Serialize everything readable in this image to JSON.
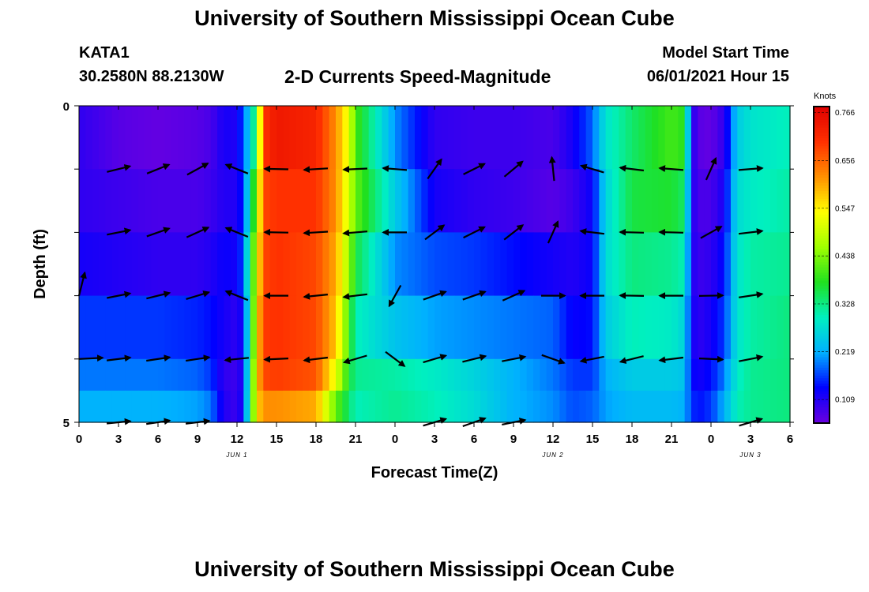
{
  "header": {
    "title": "University of Southern Mississippi Ocean Cube",
    "station": "KATA1",
    "coords": "30.2580N  88.2130W",
    "subtitle": "2-D Currents Speed-Magnitude",
    "model_start_label": "Model Start Time",
    "model_start_value": "06/01/2021 Hour 15"
  },
  "footer": {
    "title": "University of Southern Mississippi Ocean Cube"
  },
  "chart_data": {
    "type": "heatmap",
    "xlabel": "Forecast Time(Z)",
    "ylabel": "Depth (ft)",
    "x_ticks": [
      "0",
      "3",
      "6",
      "9",
      "12",
      "15",
      "18",
      "21",
      "0",
      "3",
      "6",
      "9",
      "12",
      "15",
      "18",
      "21",
      "0",
      "3",
      "6"
    ],
    "y_ticks": [
      "0",
      "5"
    ],
    "ylim": [
      0,
      5
    ],
    "day_labels": [
      {
        "text": "JUN 1",
        "hour": 12
      },
      {
        "text": "JUN 2",
        "hour": 36
      },
      {
        "text": "JUN 3",
        "hour": 51
      }
    ],
    "hours_span": 54,
    "colorbar": {
      "unit": "Knots",
      "ticks": [
        "0.109",
        "0.219",
        "0.328",
        "0.438",
        "0.547",
        "0.656",
        "0.766"
      ],
      "tick_values": [
        0.109,
        0.219,
        0.328,
        0.438,
        0.547,
        0.656,
        0.766
      ],
      "range": [
        0.055,
        0.78
      ],
      "colors": [
        "#6a00e0",
        "#0000ff",
        "#00b0ff",
        "#00f0c0",
        "#20e020",
        "#a0ff00",
        "#ffff00",
        "#ff9000",
        "#ff3000",
        "#e00000"
      ]
    },
    "speed_hours": [
      0,
      3,
      6,
      9,
      10,
      11,
      12,
      12.5,
      13,
      13.5,
      14,
      15,
      18,
      19.5,
      20.5,
      21,
      24,
      27,
      30,
      33,
      36,
      37.5,
      39,
      40,
      42,
      45,
      46,
      46.5,
      47,
      48,
      49,
      50,
      51,
      54
    ],
    "speed_depths": [
      0.25,
      1,
      2,
      3,
      4,
      5
    ],
    "speed_values": [
      [
        0.1,
        0.07,
        0.06,
        0.07,
        0.08,
        0.12,
        0.11,
        0.18,
        0.25,
        0.38,
        0.7,
        0.74,
        0.72,
        0.62,
        0.52,
        0.4,
        0.2,
        0.1,
        0.09,
        0.09,
        0.08,
        0.12,
        0.18,
        0.28,
        0.34,
        0.4,
        0.38,
        0.12,
        0.07,
        0.06,
        0.1,
        0.25,
        0.28,
        0.3
      ],
      [
        0.1,
        0.09,
        0.08,
        0.08,
        0.09,
        0.11,
        0.11,
        0.16,
        0.3,
        0.45,
        0.68,
        0.7,
        0.7,
        0.62,
        0.5,
        0.42,
        0.25,
        0.12,
        0.1,
        0.09,
        0.07,
        0.09,
        0.13,
        0.26,
        0.36,
        0.37,
        0.34,
        0.12,
        0.08,
        0.08,
        0.12,
        0.27,
        0.29,
        0.31
      ],
      [
        0.12,
        0.11,
        0.1,
        0.1,
        0.11,
        0.13,
        0.12,
        0.18,
        0.34,
        0.5,
        0.68,
        0.7,
        0.68,
        0.6,
        0.46,
        0.36,
        0.2,
        0.17,
        0.16,
        0.14,
        0.12,
        0.11,
        0.13,
        0.27,
        0.33,
        0.32,
        0.3,
        0.12,
        0.09,
        0.1,
        0.14,
        0.28,
        0.31,
        0.32
      ],
      [
        0.16,
        0.16,
        0.16,
        0.15,
        0.14,
        0.12,
        0.1,
        0.14,
        0.32,
        0.54,
        0.69,
        0.7,
        0.68,
        0.58,
        0.4,
        0.3,
        0.24,
        0.21,
        0.2,
        0.19,
        0.18,
        0.13,
        0.14,
        0.25,
        0.3,
        0.29,
        0.26,
        0.13,
        0.1,
        0.12,
        0.16,
        0.28,
        0.31,
        0.33
      ],
      [
        0.19,
        0.19,
        0.19,
        0.18,
        0.16,
        0.1,
        0.09,
        0.13,
        0.34,
        0.56,
        0.68,
        0.69,
        0.67,
        0.52,
        0.37,
        0.32,
        0.31,
        0.29,
        0.26,
        0.22,
        0.19,
        0.16,
        0.16,
        0.22,
        0.25,
        0.25,
        0.24,
        0.14,
        0.12,
        0.14,
        0.19,
        0.29,
        0.32,
        0.33
      ],
      [
        0.22,
        0.22,
        0.22,
        0.21,
        0.19,
        0.11,
        0.09,
        0.14,
        0.34,
        0.56,
        0.62,
        0.62,
        0.6,
        0.42,
        0.34,
        0.3,
        0.32,
        0.3,
        0.27,
        0.22,
        0.2,
        0.17,
        0.18,
        0.21,
        0.23,
        0.23,
        0.22,
        0.16,
        0.14,
        0.16,
        0.22,
        0.3,
        0.32,
        0.33
      ]
    ],
    "vectors": [
      {
        "hour": 3,
        "depth": 1,
        "dx": 1,
        "dy": 0.25
      },
      {
        "hour": 6,
        "depth": 1,
        "dx": 1,
        "dy": 0.4
      },
      {
        "hour": 9,
        "depth": 1,
        "dx": 1,
        "dy": 0.55
      },
      {
        "hour": 12,
        "depth": 1,
        "dx": -1,
        "dy": 0.4
      },
      {
        "hour": 15,
        "depth": 1,
        "dx": -1,
        "dy": 0.02
      },
      {
        "hour": 18,
        "depth": 1,
        "dx": -1,
        "dy": -0.06
      },
      {
        "hour": 21,
        "depth": 1,
        "dx": -1,
        "dy": -0.05
      },
      {
        "hour": 24,
        "depth": 1,
        "dx": -1,
        "dy": 0.08
      },
      {
        "hour": 27,
        "depth": 1,
        "dx": 0.6,
        "dy": 0.85
      },
      {
        "hour": 30,
        "depth": 1,
        "dx": 1,
        "dy": 0.5
      },
      {
        "hour": 33,
        "depth": 1,
        "dx": 0.9,
        "dy": 0.75
      },
      {
        "hour": 36,
        "depth": 1,
        "dx": -0.1,
        "dy": 1
      },
      {
        "hour": 39,
        "depth": 1,
        "dx": -1,
        "dy": 0.3
      },
      {
        "hour": 42,
        "depth": 1,
        "dx": -1,
        "dy": 0.12
      },
      {
        "hour": 45,
        "depth": 1,
        "dx": -1,
        "dy": 0.08
      },
      {
        "hour": 48,
        "depth": 1,
        "dx": 0.4,
        "dy": 0.9
      },
      {
        "hour": 51,
        "depth": 1,
        "dx": 1,
        "dy": 0.08
      },
      {
        "hour": 3,
        "depth": 2,
        "dx": 1,
        "dy": 0.2
      },
      {
        "hour": 6,
        "depth": 2,
        "dx": 1,
        "dy": 0.35
      },
      {
        "hour": 9,
        "depth": 2,
        "dx": 1,
        "dy": 0.45
      },
      {
        "hour": 12,
        "depth": 2,
        "dx": -1,
        "dy": 0.4
      },
      {
        "hour": 15,
        "depth": 2,
        "dx": -1,
        "dy": 0.02
      },
      {
        "hour": 18,
        "depth": 2,
        "dx": -1,
        "dy": -0.06
      },
      {
        "hour": 21,
        "depth": 2,
        "dx": -1,
        "dy": -0.08
      },
      {
        "hour": 24,
        "depth": 2,
        "dx": -1,
        "dy": 0
      },
      {
        "hour": 27,
        "depth": 2,
        "dx": 0.8,
        "dy": 0.6
      },
      {
        "hour": 30,
        "depth": 2,
        "dx": 1,
        "dy": 0.5
      },
      {
        "hour": 33,
        "depth": 2,
        "dx": 0.9,
        "dy": 0.7
      },
      {
        "hour": 36,
        "depth": 2,
        "dx": 0.4,
        "dy": 0.9
      },
      {
        "hour": 39,
        "depth": 2,
        "dx": -1,
        "dy": 0.12
      },
      {
        "hour": 42,
        "depth": 2,
        "dx": -1,
        "dy": 0.03
      },
      {
        "hour": 45,
        "depth": 2,
        "dx": -1,
        "dy": 0.03
      },
      {
        "hour": 48,
        "depth": 2,
        "dx": 0.9,
        "dy": 0.5
      },
      {
        "hour": 51,
        "depth": 2,
        "dx": 1,
        "dy": 0.12
      },
      {
        "hour": 0,
        "depth": 3,
        "dx": 0.25,
        "dy": 1
      },
      {
        "hour": 3,
        "depth": 3,
        "dx": 1,
        "dy": 0.2
      },
      {
        "hour": 6,
        "depth": 3,
        "dx": 1,
        "dy": 0.25
      },
      {
        "hour": 9,
        "depth": 3,
        "dx": 1,
        "dy": 0.3
      },
      {
        "hour": 12,
        "depth": 3,
        "dx": -1,
        "dy": 0.4
      },
      {
        "hour": 15,
        "depth": 3,
        "dx": -1,
        "dy": 0
      },
      {
        "hour": 18,
        "depth": 3,
        "dx": -1,
        "dy": -0.1
      },
      {
        "hour": 21,
        "depth": 3,
        "dx": -1,
        "dy": -0.12
      },
      {
        "hour": 24,
        "depth": 3,
        "dx": -0.5,
        "dy": -0.9
      },
      {
        "hour": 27,
        "depth": 3,
        "dx": 1,
        "dy": 0.35
      },
      {
        "hour": 30,
        "depth": 3,
        "dx": 1,
        "dy": 0.35
      },
      {
        "hour": 33,
        "depth": 3,
        "dx": 1,
        "dy": 0.45
      },
      {
        "hour": 36,
        "depth": 3,
        "dx": 1,
        "dy": 0
      },
      {
        "hour": 39,
        "depth": 3,
        "dx": -1,
        "dy": 0
      },
      {
        "hour": 42,
        "depth": 3,
        "dx": -1,
        "dy": 0.02
      },
      {
        "hour": 45,
        "depth": 3,
        "dx": -1,
        "dy": 0
      },
      {
        "hour": 48,
        "depth": 3,
        "dx": 1,
        "dy": 0.02
      },
      {
        "hour": 51,
        "depth": 3,
        "dx": 1,
        "dy": 0.15
      },
      {
        "hour": 0,
        "depth": 4,
        "dx": 1,
        "dy": 0.05
      },
      {
        "hour": 3,
        "depth": 4,
        "dx": 1,
        "dy": 0.12
      },
      {
        "hour": 6,
        "depth": 4,
        "dx": 1,
        "dy": 0.15
      },
      {
        "hour": 9,
        "depth": 4,
        "dx": 1,
        "dy": 0.15
      },
      {
        "hour": 12,
        "depth": 4,
        "dx": -1,
        "dy": -0.1
      },
      {
        "hour": 15,
        "depth": 4,
        "dx": -1,
        "dy": -0.05
      },
      {
        "hour": 18,
        "depth": 4,
        "dx": -1,
        "dy": -0.12
      },
      {
        "hour": 21,
        "depth": 4,
        "dx": -1,
        "dy": -0.3
      },
      {
        "hour": 24,
        "depth": 4,
        "dx": 0.8,
        "dy": -0.6
      },
      {
        "hour": 27,
        "depth": 4,
        "dx": 1,
        "dy": 0.3
      },
      {
        "hour": 30,
        "depth": 4,
        "dx": 1,
        "dy": 0.25
      },
      {
        "hour": 33,
        "depth": 4,
        "dx": 1,
        "dy": 0.2
      },
      {
        "hour": 36,
        "depth": 4,
        "dx": 1,
        "dy": -0.35
      },
      {
        "hour": 39,
        "depth": 4,
        "dx": -1,
        "dy": -0.2
      },
      {
        "hour": 42,
        "depth": 4,
        "dx": -1,
        "dy": -0.25
      },
      {
        "hour": 45,
        "depth": 4,
        "dx": -1,
        "dy": -0.12
      },
      {
        "hour": 48,
        "depth": 4,
        "dx": 1,
        "dy": -0.05
      },
      {
        "hour": 51,
        "depth": 4,
        "dx": 1,
        "dy": 0.2
      },
      {
        "hour": 3,
        "depth": 5,
        "dx": 1,
        "dy": 0.1
      },
      {
        "hour": 6,
        "depth": 5,
        "dx": 1,
        "dy": 0.15
      },
      {
        "hour": 9,
        "depth": 5,
        "dx": 1,
        "dy": 0.12
      },
      {
        "hour": 27,
        "depth": 5,
        "dx": 1,
        "dy": 0.3
      },
      {
        "hour": 30,
        "depth": 5,
        "dx": 1,
        "dy": 0.35
      },
      {
        "hour": 33,
        "depth": 5,
        "dx": 1,
        "dy": 0.2
      },
      {
        "hour": 51,
        "depth": 5,
        "dx": 1,
        "dy": 0.3
      }
    ]
  }
}
